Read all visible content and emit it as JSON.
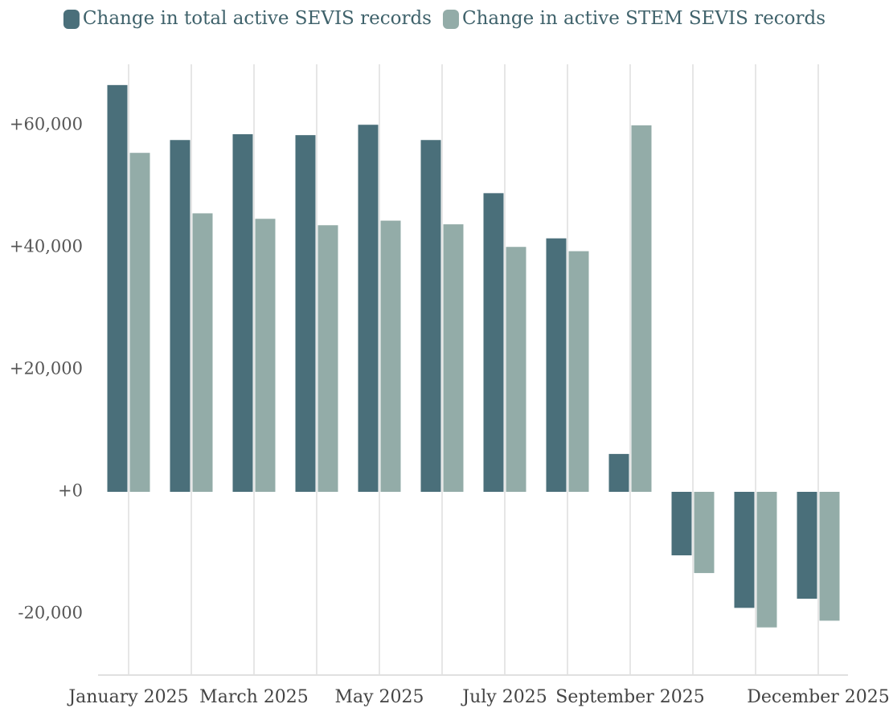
{
  "chart_data": {
    "type": "bar",
    "categories": [
      "January 2025",
      null,
      "March 2025",
      null,
      "May 2025",
      null,
      "July 2025",
      null,
      "September 2025",
      null,
      null,
      "December 2025"
    ],
    "series": [
      {
        "name": "Change in total active SEVIS records",
        "color": "#4a6f7a",
        "values": [
          66600,
          57600,
          58550,
          58400,
          60100,
          57600,
          48900,
          41500,
          6200,
          -10400,
          -19000,
          -17500
        ]
      },
      {
        "name": "Change in active STEM SEVIS records",
        "color": "#93aca8",
        "values": [
          55500,
          45600,
          44700,
          43650,
          44400,
          43800,
          40100,
          39400,
          60000,
          -13300,
          -22200,
          -21100
        ]
      }
    ],
    "ylim": [
      -30000,
      70000
    ],
    "yticks": [
      {
        "value": -20000,
        "label": "-20,000"
      },
      {
        "value": 0,
        "label": "+0"
      },
      {
        "value": 20000,
        "label": "+20,000"
      },
      {
        "value": 40000,
        "label": "+40,000"
      },
      {
        "value": 60000,
        "label": "+60,000"
      }
    ],
    "grid": true,
    "legend": "top"
  }
}
